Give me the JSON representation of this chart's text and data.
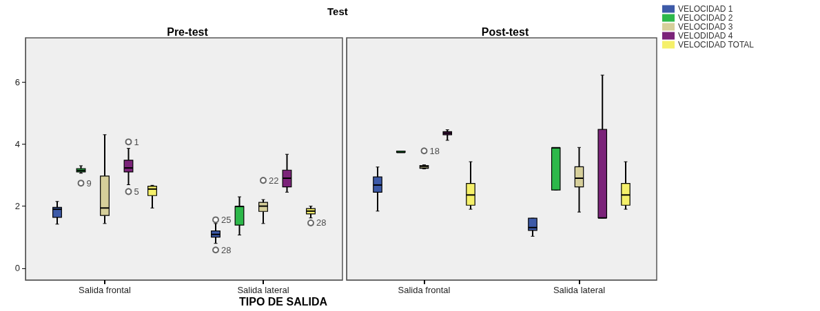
{
  "chart_data": [
    {
      "type": "box",
      "title": "Pre-test",
      "xlabel": "TIPO DE SALIDA",
      "categories": [
        "Salida frontal",
        "Salida lateral"
      ],
      "ylim": [
        -0.38,
        7.42
      ],
      "yticks": [
        0,
        2,
        4,
        6
      ],
      "marker": "circle",
      "annotations": [
        "Test",
        "25",
        "28",
        "9",
        "22",
        "1",
        "5",
        "28"
      ],
      "series": [
        {
          "color": "#3d5aa8",
          "boxes": [
            {
              "low": 1.42,
              "q1": 1.64,
              "median": 1.9,
              "q3": 1.96,
              "high": 2.15
            },
            {
              "low": 0.8,
              "q1": 1.0,
              "median": 1.09,
              "q3": 1.2,
              "high": 1.44,
              "outliers": [
                1.56,
                0.59
              ]
            }
          ]
        },
        {
          "color": "#2db84a",
          "boxes": [
            {
              "low": 3.06,
              "q1": 3.1,
              "median": 3.15,
              "q3": 3.21,
              "high": 3.3,
              "outliers": [
                2.74
              ]
            },
            {
              "low": 1.07,
              "q1": 1.39,
              "median": 1.99,
              "q3": 1.99,
              "high": 2.3
            }
          ]
        },
        {
          "color": "#d6cf9a",
          "boxes": [
            {
              "low": 1.44,
              "q1": 1.7,
              "median": 1.94,
              "q3": 2.97,
              "high": 4.3
            },
            {
              "low": 1.44,
              "q1": 1.83,
              "median": 2.0,
              "q3": 2.12,
              "high": 2.21,
              "outliers": [
                2.83
              ]
            }
          ]
        },
        {
          "color": "#7b2379",
          "boxes": [
            {
              "low": 2.69,
              "q1": 3.1,
              "median": 3.23,
              "q3": 3.48,
              "high": 3.86,
              "outliers": [
                4.07,
                2.47
              ]
            },
            {
              "low": 2.45,
              "q1": 2.62,
              "median": 2.9,
              "q3": 3.16,
              "high": 3.67
            }
          ]
        },
        {
          "color": "#f5f06a",
          "boxes": [
            {
              "low": 1.94,
              "q1": 2.34,
              "median": 2.55,
              "q3": 2.64,
              "high": 2.67
            },
            {
              "low": 1.62,
              "q1": 1.75,
              "median": 1.84,
              "q3": 1.92,
              "high": 2.0,
              "outliers": [
                1.46
              ]
            }
          ]
        }
      ]
    },
    {
      "type": "box",
      "title": "Post-test",
      "categories": [
        "Salida frontal",
        "Salida lateral"
      ],
      "ylim": [
        -0.38,
        7.42
      ],
      "yticks": [
        0,
        2,
        4,
        6
      ],
      "tick_labels": "x",
      "legend": "top right",
      "marker": "circle",
      "annotations": [
        "18"
      ],
      "series": [
        {
          "name": "VELOCIDAD 1",
          "color": "#3d5aa8",
          "boxes": [
            {
              "low": 1.84,
              "q1": 2.45,
              "median": 2.68,
              "q3": 2.94,
              "high": 3.26
            },
            {
              "low": 1.03,
              "q1": 1.22,
              "median": 1.31,
              "q3": 1.61,
              "high": 1.61
            }
          ]
        },
        {
          "name": "VELOCIDAD 2",
          "color": "#2db84a",
          "boxes": [
            {
              "low": 3.73,
              "q1": 3.73,
              "median": 3.73,
              "q3": 3.73,
              "high": 3.73
            },
            {
              "low": 2.52,
              "q1": 2.52,
              "median": 3.88,
              "q3": 3.88,
              "high": 3.88
            }
          ]
        },
        {
          "name": "VELOCIDAD 3",
          "color": "#d6cf9a",
          "boxes": [
            {
              "low": 3.2,
              "q1": 3.22,
              "median": 3.27,
              "q3": 3.31,
              "high": 3.33,
              "outliers": [
                3.78
              ]
            },
            {
              "low": 1.81,
              "q1": 2.62,
              "median": 2.9,
              "q3": 3.27,
              "high": 3.89
            }
          ]
        },
        {
          "name": "VELODIDAD 4",
          "color": "#7b2379",
          "boxes": [
            {
              "low": 4.12,
              "q1": 4.3,
              "median": 4.35,
              "q3": 4.4,
              "high": 4.46
            },
            {
              "low": 1.62,
              "q1": 1.62,
              "median": 1.62,
              "q3": 4.47,
              "high": 6.22
            }
          ]
        },
        {
          "name": "VELOCIDAD TOTAL",
          "color": "#f5f06a",
          "boxes": [
            {
              "low": 1.9,
              "q1": 2.03,
              "median": 2.36,
              "q3": 2.73,
              "high": 3.43
            },
            {
              "low": 1.9,
              "q1": 2.03,
              "median": 2.36,
              "q3": 2.73,
              "high": 3.43
            }
          ]
        }
      ]
    }
  ]
}
